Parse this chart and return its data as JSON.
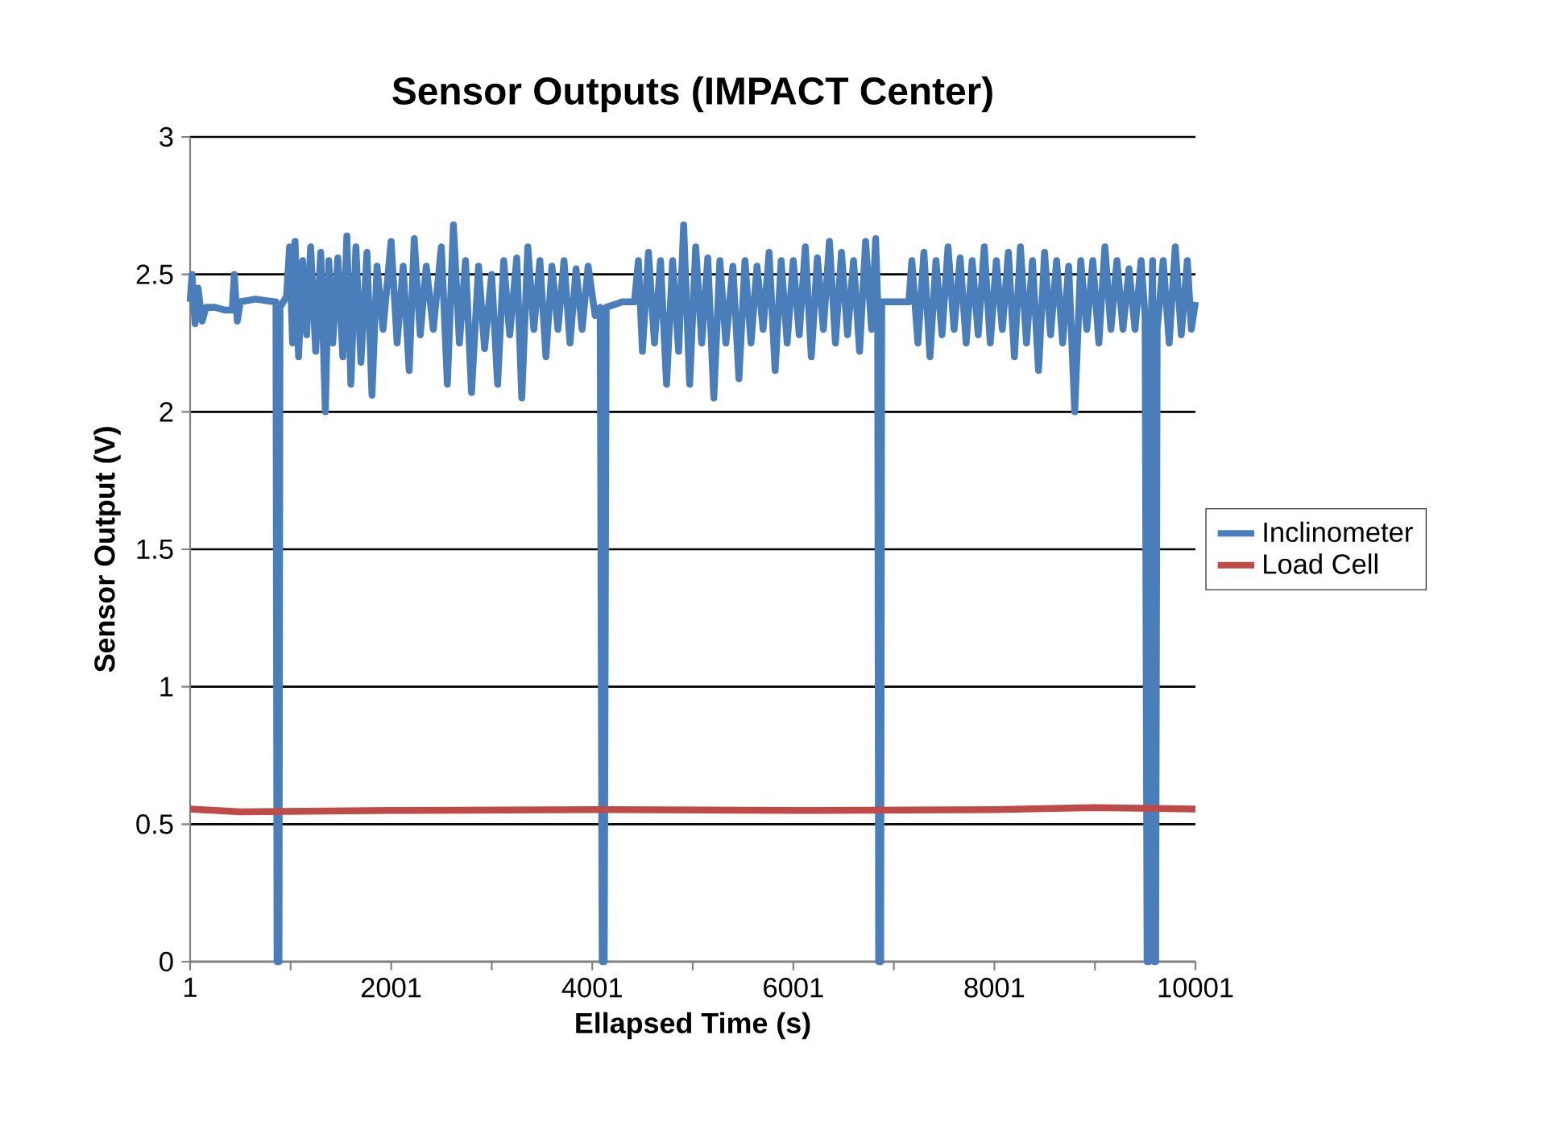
{
  "chart_data": {
    "type": "line",
    "title": "Sensor Outputs (IMPACT Center)",
    "xlabel": "Ellapsed Time (s)",
    "ylabel": "Sensor Output (V)",
    "xlim": [
      1,
      10001
    ],
    "xticks": [
      1,
      {
        "value": 1001,
        "label": null
      },
      2001,
      {
        "value": 3001,
        "label": null
      },
      4001,
      {
        "value": 5001,
        "label": null
      },
      6001,
      {
        "value": 7001,
        "label": null
      },
      8001,
      {
        "value": 9001,
        "label": null
      },
      10001
    ],
    "ylim": [
      0,
      3
    ],
    "yticks": [
      0,
      0.5,
      1,
      1.5,
      2,
      2.5,
      3
    ],
    "grid": "y",
    "legend": "right",
    "marker": "none",
    "line_style": "solid",
    "series": [
      {
        "name": "Inclinometer",
        "color": "#4a7ebb",
        "x": [
          1,
          20,
          50,
          80,
          120,
          160,
          250,
          350,
          420,
          440,
          470,
          500,
          650,
          840,
          855,
          866,
          885,
          895,
          960,
          990,
          1020,
          1045,
          1080,
          1120,
          1160,
          1200,
          1250,
          1300,
          1346,
          1380,
          1420,
          1470,
          1520,
          1560,
          1600,
          1650,
          1700,
          1760,
          1810,
          1860,
          1920,
          2000,
          2060,
          2120,
          2180,
          2230,
          2290,
          2350,
          2420,
          2500,
          2560,
          2620,
          2680,
          2740,
          2800,
          2870,
          2930,
          3000,
          3060,
          3120,
          3180,
          3250,
          3300,
          3360,
          3420,
          3480,
          3540,
          3600,
          3660,
          3720,
          3780,
          3840,
          3900,
          3960,
          4030,
          4080,
          4100,
          4120,
          4140,
          4300,
          4420,
          4460,
          4500,
          4560,
          4620,
          4680,
          4740,
          4800,
          4860,
          4910,
          4970,
          5030,
          5090,
          5150,
          5210,
          5270,
          5330,
          5400,
          5460,
          5520,
          5580,
          5640,
          5700,
          5760,
          5820,
          5880,
          5940,
          6000,
          6060,
          6120,
          6180,
          6240,
          6300,
          6360,
          6420,
          6480,
          6540,
          6600,
          6660,
          6720,
          6780,
          6820,
          6840,
          6850,
          6870,
          6880,
          7000,
          7150,
          7180,
          7240,
          7300,
          7360,
          7420,
          7480,
          7540,
          7600,
          7660,
          7720,
          7780,
          7840,
          7900,
          7960,
          8020,
          8080,
          8140,
          8200,
          8260,
          8320,
          8380,
          8440,
          8500,
          8560,
          8620,
          8680,
          8740,
          8800,
          8860,
          8920,
          8980,
          9040,
          9100,
          9160,
          9220,
          9280,
          9340,
          9400,
          9460,
          9500,
          9520,
          9540,
          9560,
          9575,
          9590,
          9605,
          9620,
          9680,
          9740,
          9800,
          9860,
          9920,
          9960,
          10001
        ],
        "values": [
          2.4,
          2.5,
          2.32,
          2.45,
          2.33,
          2.38,
          2.38,
          2.37,
          2.37,
          2.5,
          2.33,
          2.4,
          2.41,
          2.4,
          2.4,
          0,
          0,
          2.38,
          2.42,
          2.6,
          2.25,
          2.62,
          2.2,
          2.55,
          2.28,
          2.6,
          2.22,
          2.58,
          2.0,
          2.55,
          2.25,
          2.56,
          2.2,
          2.64,
          2.1,
          2.6,
          2.18,
          2.58,
          2.06,
          2.53,
          2.3,
          2.62,
          2.25,
          2.53,
          2.15,
          2.63,
          2.28,
          2.53,
          2.3,
          2.6,
          2.1,
          2.68,
          2.25,
          2.55,
          2.07,
          2.53,
          2.23,
          2.5,
          2.1,
          2.55,
          2.28,
          2.56,
          2.05,
          2.6,
          2.3,
          2.55,
          2.2,
          2.53,
          2.3,
          2.55,
          2.25,
          2.52,
          2.3,
          2.53,
          2.35,
          2.38,
          0,
          0,
          2.38,
          2.4,
          2.4,
          2.55,
          2.22,
          2.58,
          2.25,
          2.55,
          2.1,
          2.55,
          2.22,
          2.68,
          2.1,
          2.6,
          2.25,
          2.56,
          2.05,
          2.55,
          2.25,
          2.53,
          2.12,
          2.55,
          2.25,
          2.53,
          2.3,
          2.58,
          2.15,
          2.55,
          2.25,
          2.55,
          2.28,
          2.6,
          2.2,
          2.56,
          2.3,
          2.62,
          2.25,
          2.58,
          2.28,
          2.55,
          2.22,
          2.62,
          2.3,
          2.63,
          2.4,
          0,
          0,
          2.4,
          2.4,
          2.4,
          2.55,
          2.25,
          2.58,
          2.2,
          2.55,
          2.28,
          2.6,
          2.3,
          2.56,
          2.25,
          2.55,
          2.28,
          2.6,
          2.25,
          2.55,
          2.3,
          2.58,
          2.2,
          2.6,
          2.25,
          2.55,
          2.15,
          2.58,
          2.28,
          2.55,
          2.25,
          2.53,
          2.0,
          2.55,
          2.3,
          2.55,
          2.25,
          2.6,
          2.3,
          2.55,
          2.3,
          2.52,
          2.3,
          2.55,
          2.35,
          0,
          0,
          2.3,
          2.55,
          0,
          0,
          2.3,
          2.55,
          2.25,
          2.6,
          2.28,
          2.55,
          2.3,
          2.4
        ]
      },
      {
        "name": "Load Cell",
        "color": "#be4b48",
        "x": [
          1,
          500,
          2000,
          4000,
          6000,
          8000,
          9000,
          10001
        ],
        "values": [
          0.555,
          0.545,
          0.55,
          0.553,
          0.55,
          0.553,
          0.56,
          0.555
        ]
      }
    ]
  }
}
